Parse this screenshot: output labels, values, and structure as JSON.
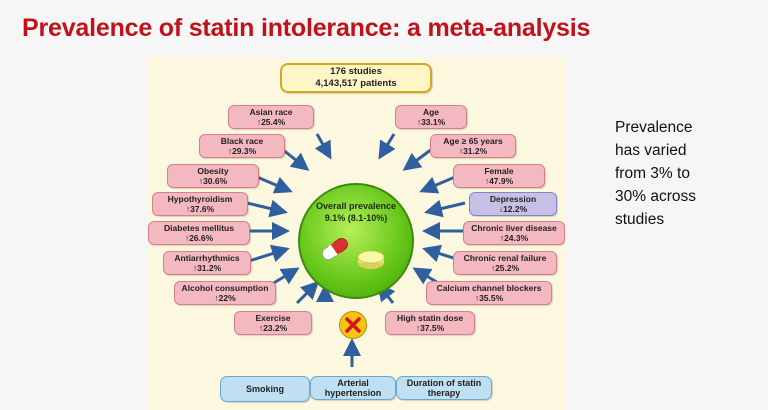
{
  "title": "Prevalence of statin intolerance: a meta-analysis",
  "studies": {
    "line1": "176 studies",
    "line2": "4,143,517 patients"
  },
  "center": {
    "title": "Overall prevalence",
    "value": "9.1% (8.1-10%)"
  },
  "left_factors": [
    {
      "name": "Asian race",
      "value": "↑25.4%"
    },
    {
      "name": "Black race",
      "value": "↑29.3%"
    },
    {
      "name": "Obesity",
      "value": "↑30.6%"
    },
    {
      "name": "Hypothyroidism",
      "value": "↑37.6%"
    },
    {
      "name": "Diabetes mellitus",
      "value": "↑26.6%"
    },
    {
      "name": "Antiarrhythmics",
      "value": "↑31.2%"
    },
    {
      "name": "Alcohol consumption",
      "value": "↑22%"
    },
    {
      "name": "Exercise",
      "value": "↑23.2%"
    }
  ],
  "right_factors": [
    {
      "name": "Age",
      "value": "↑33.1%"
    },
    {
      "name": "Age ≥ 65 years",
      "value": "↑31.2%"
    },
    {
      "name": "Female",
      "value": "↑47.9%"
    },
    {
      "name": "Depression",
      "value": "↓12.2%"
    },
    {
      "name": "Chronic liver disease",
      "value": "↑24.3%"
    },
    {
      "name": "Chronic renal failure",
      "value": "↑25.2%"
    },
    {
      "name": "Calcium channel blockers",
      "value": "↑35.5%"
    },
    {
      "name": "High statin dose",
      "value": "↑37.5%"
    }
  ],
  "non_factors": [
    {
      "line1": "Smoking",
      "line2": ""
    },
    {
      "line1": "Arterial",
      "line2": "hypertension"
    },
    {
      "line1": "Duration of statin",
      "line2": "therapy"
    }
  ],
  "side_text": [
    "Prevalence",
    "has varied",
    "from 3% to",
    "30% across",
    "studies"
  ],
  "colors": {
    "title": "#c0121a",
    "risk_box": "#f4b8c0",
    "protective_box": "#c7c0e6",
    "neutral_box": "#bfe0f2",
    "circle": "#62c416",
    "arrow": "#2f5f9e"
  }
}
